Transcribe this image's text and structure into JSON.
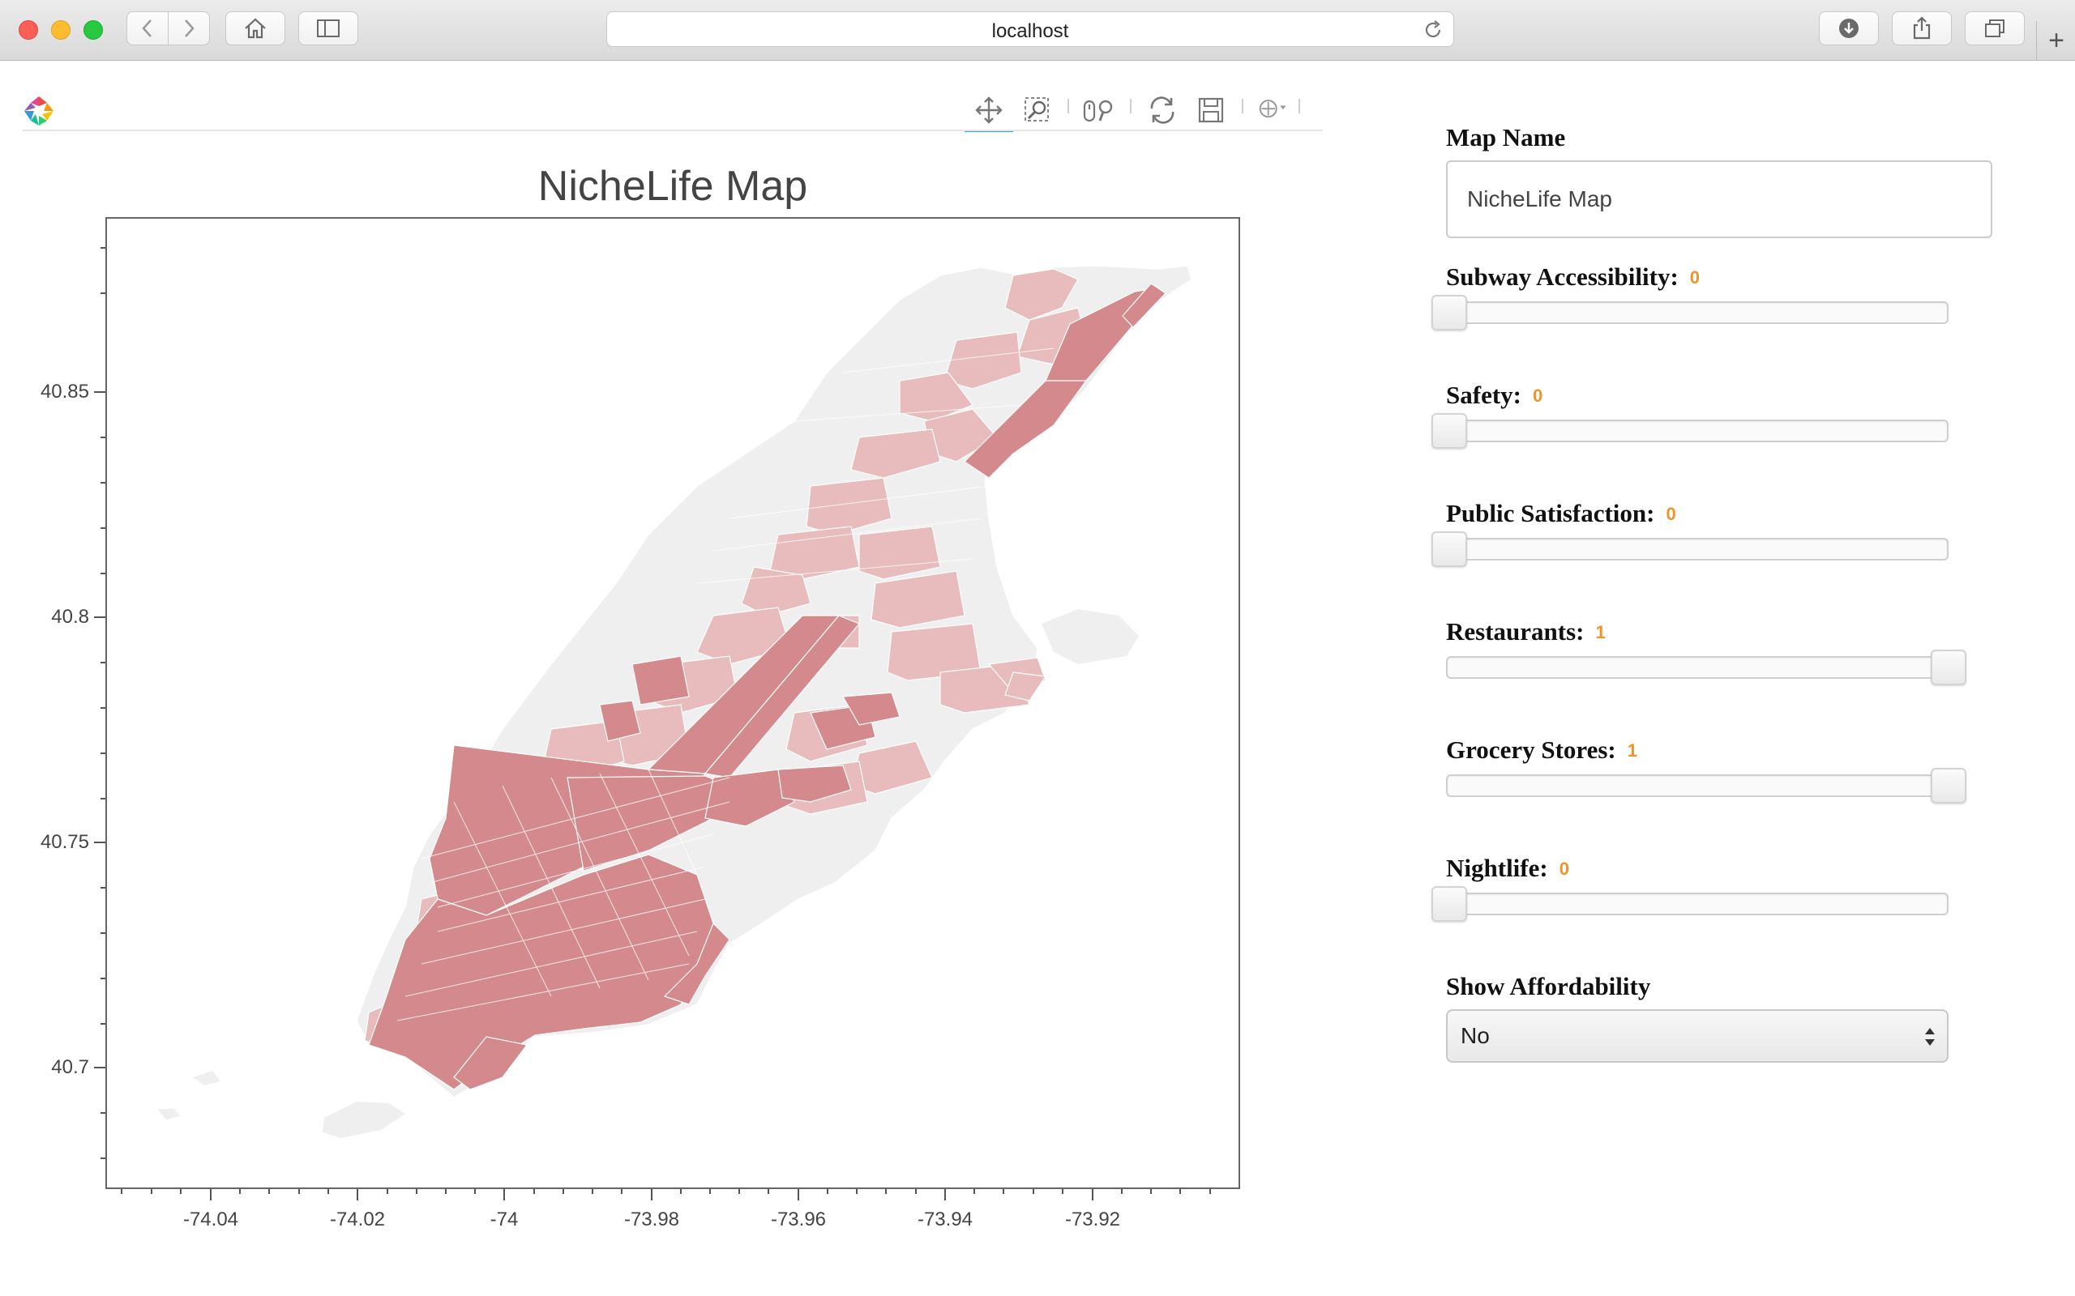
{
  "browser": {
    "url": "localhost",
    "colors": {
      "close": "#fe5f57",
      "minimize": "#febc2e",
      "maximize": "#28c840"
    },
    "new_tab_label": "+"
  },
  "plot": {
    "title": "NicheLife Map",
    "tools": [
      "pan-icon",
      "box-zoom-icon",
      "wheel-zoom-icon",
      "reset-icon",
      "save-icon",
      "hover-icon"
    ],
    "active_tool": "pan",
    "x_ticks": [
      "-74.04",
      "-74.02",
      "-74",
      "-73.98",
      "-73.96",
      "-73.94",
      "-73.92"
    ],
    "y_ticks": [
      "40.85",
      "40.8",
      "40.75",
      "40.7"
    ],
    "colors": {
      "high": "#d48a8c",
      "mid": "#e8bcbd",
      "low": "#f0f0f0",
      "tool_active": "#26aae1"
    }
  },
  "chart_data": {
    "type": "map",
    "title": "NicheLife Map",
    "x_ticks": [
      -74.04,
      -74.02,
      -74.0,
      -73.98,
      -73.96,
      -73.94,
      -73.92
    ],
    "y_ticks": [
      40.85,
      40.8,
      40.75,
      40.7
    ]
  },
  "controls": {
    "map_name": {
      "label": "Map Name",
      "value": "NicheLife Map"
    },
    "sliders": [
      {
        "label": "Subway Accessibility:",
        "value": "0",
        "fraction": 0
      },
      {
        "label": "Safety:",
        "value": "0",
        "fraction": 0
      },
      {
        "label": "Public Satisfaction:",
        "value": "0",
        "fraction": 0
      },
      {
        "label": "Restaurants:",
        "value": "1",
        "fraction": 1
      },
      {
        "label": "Grocery Stores:",
        "value": "1",
        "fraction": 1
      },
      {
        "label": "Nightlife:",
        "value": "0",
        "fraction": 0
      }
    ],
    "affordability": {
      "label": "Show Affordability",
      "selected": "No"
    },
    "accent_color": "#f0932b"
  }
}
